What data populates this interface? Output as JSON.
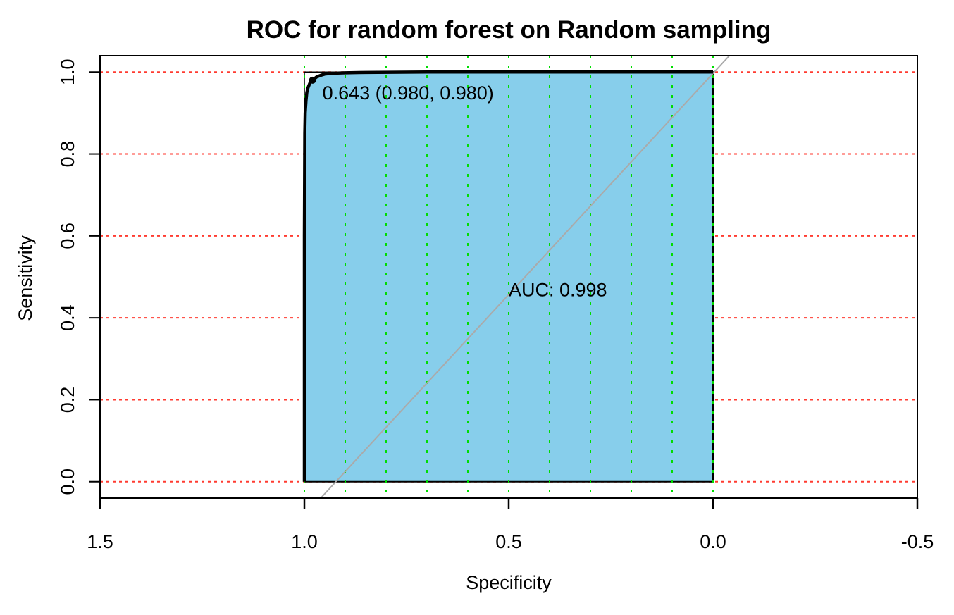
{
  "chart_data": {
    "type": "line",
    "title": "ROC for random forest on Random sampling",
    "xlabel": "Specificity",
    "ylabel": "Sensitivity",
    "x_reversed": true,
    "xlim": [
      1.5,
      -0.5
    ],
    "ylim": [
      -0.04,
      1.04
    ],
    "x_ticks": [
      1.5,
      1.0,
      0.5,
      0.0,
      -0.5
    ],
    "x_tick_labels": [
      "1.5",
      "1.0",
      "0.5",
      "0.0",
      "-0.5"
    ],
    "y_ticks": [
      0.0,
      0.2,
      0.4,
      0.6,
      0.8,
      1.0
    ],
    "y_tick_labels": [
      "0.0",
      "0.2",
      "0.4",
      "0.6",
      "0.8",
      "1.0"
    ],
    "grid": {
      "vertical": [
        1.0,
        0.9,
        0.8,
        0.7,
        0.6,
        0.5,
        0.4,
        0.3,
        0.2,
        0.1,
        0.0
      ],
      "horizontal": [
        0.0,
        0.2,
        0.4,
        0.6,
        0.8,
        1.0
      ],
      "vertical_color": "#00dd00",
      "horizontal_color": "#ff3b30"
    },
    "auc_fill_color": "#87ceeb",
    "curve_color": "#000000",
    "diagonal_color": "#aaaaaa",
    "series": [
      {
        "specificity": [
          1.0,
          1.0,
          0.999,
          0.998,
          0.996,
          0.994,
          0.991,
          0.987,
          0.984,
          0.98,
          0.975,
          0.97,
          0.96,
          0.95,
          0.93,
          0.9,
          0.85,
          0.7,
          0.5,
          0.3,
          0.0
        ],
        "sensitivity": [
          0.0,
          0.6,
          0.85,
          0.9,
          0.93,
          0.95,
          0.962,
          0.972,
          0.977,
          0.98,
          0.984,
          0.988,
          0.992,
          0.995,
          0.997,
          0.998,
          0.999,
          1.0,
          1.0,
          1.0,
          1.0
        ]
      }
    ],
    "threshold_point": {
      "specificity": 0.98,
      "sensitivity": 0.98,
      "label": "0.643 (0.980, 0.980)"
    },
    "auc_label": "AUC: 0.998",
    "auc_label_pos": {
      "specificity": 0.5,
      "sensitivity": 0.47
    }
  }
}
